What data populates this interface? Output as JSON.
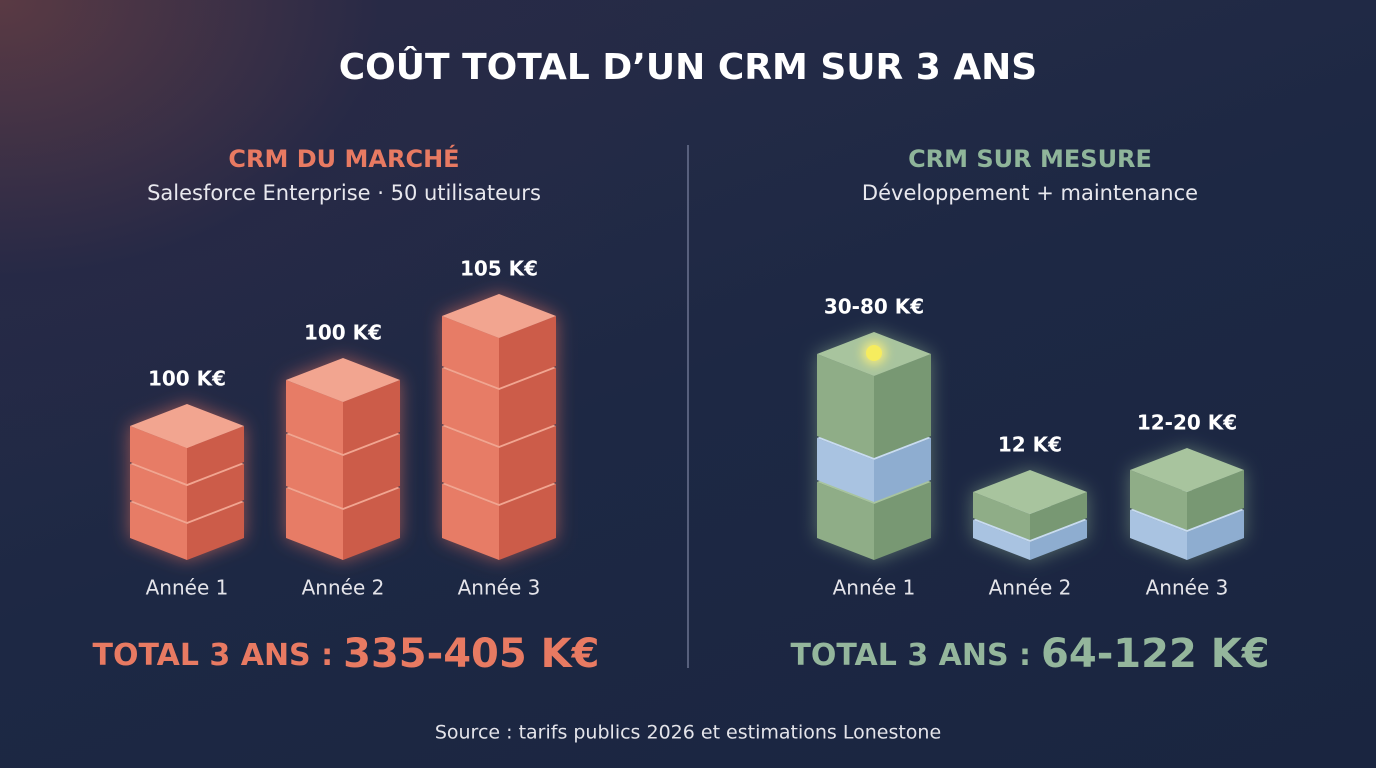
{
  "title": "COÛT TOTAL D’UN CRM SUR 3 ANS",
  "panels": [
    {
      "heading": "CRM DU MARCHÉ",
      "subheading": "Salesforce Enterprise · 50 utilisateurs",
      "columns": [
        {
          "label": "Année 1",
          "value_label": "100 K€"
        },
        {
          "label": "Année 2",
          "value_label": "100 K€"
        },
        {
          "label": "Année 3",
          "value_label": "105 K€"
        }
      ],
      "total_label": "TOTAL 3 ANS :",
      "total_value": "335-405 K€"
    },
    {
      "heading": "CRM SUR MESURE",
      "subheading": "Développement + maintenance",
      "columns": [
        {
          "label": "Année 1",
          "value_label": "30-80 K€"
        },
        {
          "label": "Année 2",
          "value_label": "12 K€"
        },
        {
          "label": "Année 3",
          "value_label": "12-20 K€"
        }
      ],
      "total_label": "TOTAL 3 ANS :",
      "total_value": "64-122 K€"
    }
  ],
  "source": "Source : tarifs publics 2026 et estimations Lonestone"
}
